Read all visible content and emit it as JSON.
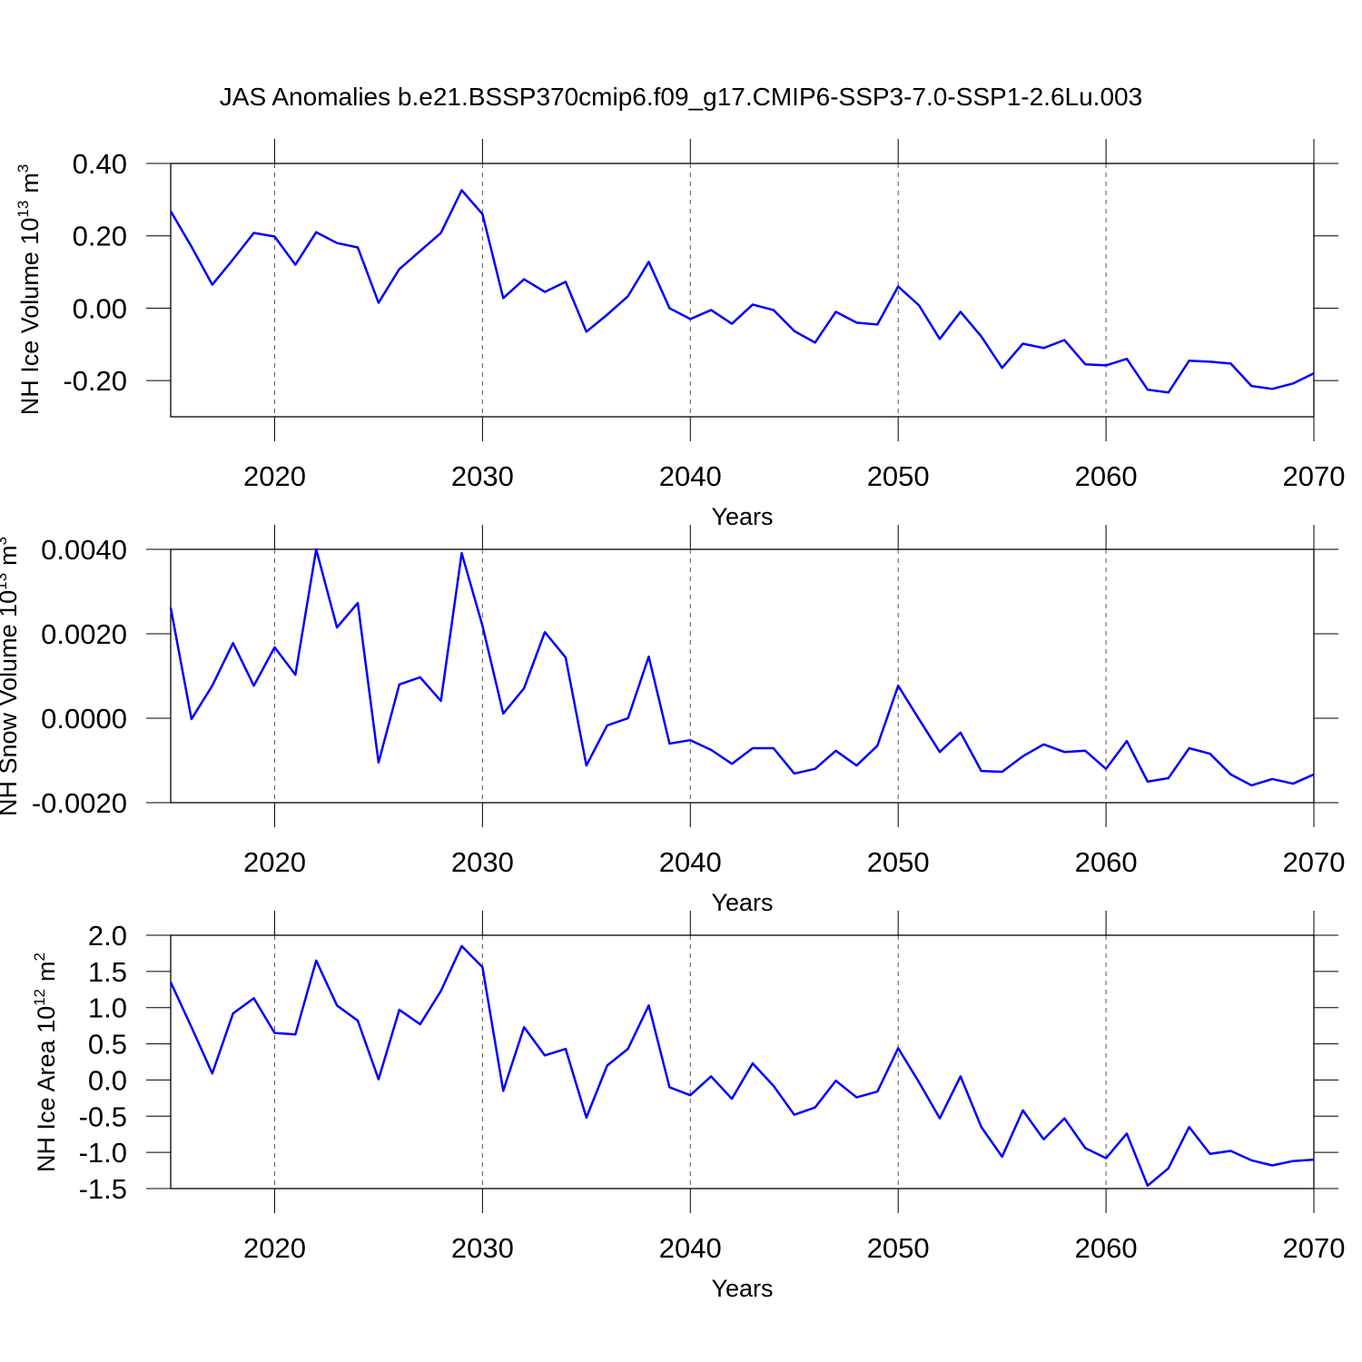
{
  "chart_data": [
    {
      "type": "line",
      "title": "JAS Anomalies b.e21.BSSP370cmip6.f09_g17.CMIP6-SSP3-7.0-SSP1-2.6Lu.003",
      "xlabel": "Years",
      "ylabel": {
        "text": "NH Ice Volume 10",
        "exp": "13",
        "unit": "m",
        "unit_exp": "3"
      },
      "x": [
        2015,
        2016,
        2017,
        2018,
        2019,
        2020,
        2021,
        2022,
        2023,
        2024,
        2025,
        2026,
        2027,
        2028,
        2029,
        2030,
        2031,
        2032,
        2033,
        2034,
        2035,
        2036,
        2037,
        2038,
        2039,
        2040,
        2041,
        2042,
        2043,
        2044,
        2045,
        2046,
        2047,
        2048,
        2049,
        2050,
        2051,
        2052,
        2053,
        2054,
        2055,
        2056,
        2057,
        2058,
        2059,
        2060,
        2061,
        2062,
        2063,
        2064,
        2065,
        2066,
        2067,
        2068,
        2069,
        2070
      ],
      "series": [
        {
          "color": "#0000ff",
          "values": [
            0.268,
            0.17,
            0.065,
            0.135,
            0.208,
            0.198,
            0.12,
            0.21,
            0.18,
            0.168,
            0.015,
            0.108,
            0.158,
            0.208,
            0.326,
            0.26,
            0.028,
            0.08,
            0.045,
            0.073,
            -0.065,
            -0.018,
            0.033,
            0.128,
            0.0,
            -0.03,
            -0.005,
            -0.043,
            0.01,
            -0.005,
            -0.063,
            -0.095,
            -0.01,
            -0.04,
            -0.045,
            0.06,
            0.008,
            -0.085,
            -0.01,
            -0.078,
            -0.165,
            -0.098,
            -0.11,
            -0.088,
            -0.155,
            -0.158,
            -0.14,
            -0.225,
            -0.233,
            -0.145,
            -0.148,
            -0.153,
            -0.215,
            -0.223,
            -0.208,
            -0.18
          ]
        }
      ],
      "xlim": [
        2015,
        2070
      ],
      "xticks": [
        2020,
        2030,
        2040,
        2050,
        2060,
        2070
      ],
      "ylim": [
        -0.3,
        0.4
      ],
      "yticks": [
        {
          "value": 0.4,
          "label": "0.40"
        },
        {
          "value": 0.2,
          "label": "0.20"
        },
        {
          "value": 0,
          "label": "0.00"
        },
        {
          "value": -0.2,
          "label": "-0.20"
        }
      ],
      "grid": true
    },
    {
      "type": "line",
      "xlabel": "Years",
      "ylabel": {
        "text": "NH Snow Volume 10",
        "exp": "13",
        "unit": "m",
        "unit_exp": "3"
      },
      "x": [
        2015,
        2016,
        2017,
        2018,
        2019,
        2020,
        2021,
        2022,
        2023,
        2024,
        2025,
        2026,
        2027,
        2028,
        2029,
        2030,
        2031,
        2032,
        2033,
        2034,
        2035,
        2036,
        2037,
        2038,
        2039,
        2040,
        2041,
        2042,
        2043,
        2044,
        2045,
        2046,
        2047,
        2048,
        2049,
        2050,
        2051,
        2052,
        2053,
        2054,
        2055,
        2056,
        2057,
        2058,
        2059,
        2060,
        2061,
        2062,
        2063,
        2064,
        2065,
        2066,
        2067,
        2068,
        2069,
        2070
      ],
      "series": [
        {
          "color": "#0000ff",
          "values": [
            0.00262,
            -2e-05,
            0.00077,
            0.00178,
            0.00077,
            0.00168,
            0.00103,
            0.004,
            0.00215,
            0.00273,
            -0.00105,
            0.0008,
            0.00097,
            0.00041,
            0.00391,
            0.00219,
            0.00011,
            0.00071,
            0.00204,
            0.00144,
            -0.00112,
            -0.00017,
            0.0,
            0.00146,
            -0.0006,
            -0.00052,
            -0.00075,
            -0.00108,
            -0.00071,
            -0.00071,
            -0.00131,
            -0.0012,
            -0.00077,
            -0.00112,
            -0.00065,
            0.00077,
            -2e-05,
            -0.0008,
            -0.00034,
            -0.00125,
            -0.00127,
            -0.0009,
            -0.00062,
            -0.0008,
            -0.00077,
            -0.0012,
            -0.00054,
            -0.0015,
            -0.00142,
            -0.00071,
            -0.00084,
            -0.00133,
            -0.00159,
            -0.00144,
            -0.00155,
            -0.00133
          ]
        }
      ],
      "xlim": [
        2015,
        2070
      ],
      "xticks": [
        2020,
        2030,
        2040,
        2050,
        2060,
        2070
      ],
      "ylim": [
        -0.002,
        0.004
      ],
      "yticks": [
        {
          "value": 0.004,
          "label": "0.0040"
        },
        {
          "value": 0.002,
          "label": "0.0020"
        },
        {
          "value": 0,
          "label": "0.0000"
        },
        {
          "value": -0.002,
          "label": "-0.0020"
        }
      ],
      "grid": true
    },
    {
      "type": "line",
      "xlabel": "Years",
      "ylabel": {
        "text": "NH Ice Area 10",
        "exp": "12",
        "unit": "m",
        "unit_exp": "2"
      },
      "x": [
        2015,
        2016,
        2017,
        2018,
        2019,
        2020,
        2021,
        2022,
        2023,
        2024,
        2025,
        2026,
        2027,
        2028,
        2029,
        2030,
        2031,
        2032,
        2033,
        2034,
        2035,
        2036,
        2037,
        2038,
        2039,
        2040,
        2041,
        2042,
        2043,
        2044,
        2045,
        2046,
        2047,
        2048,
        2049,
        2050,
        2051,
        2052,
        2053,
        2054,
        2055,
        2056,
        2057,
        2058,
        2059,
        2060,
        2061,
        2062,
        2063,
        2064,
        2065,
        2066,
        2067,
        2068,
        2069,
        2070
      ],
      "series": [
        {
          "color": "#0000ff",
          "values": [
            1.35,
            0.73,
            0.09,
            0.92,
            1.13,
            0.65,
            0.63,
            1.65,
            1.03,
            0.82,
            0.01,
            0.97,
            0.77,
            1.23,
            1.85,
            1.56,
            -0.15,
            0.73,
            0.34,
            0.43,
            -0.52,
            0.2,
            0.43,
            1.03,
            -0.1,
            -0.21,
            0.05,
            -0.26,
            0.23,
            -0.08,
            -0.48,
            -0.38,
            -0.01,
            -0.24,
            -0.16,
            0.44,
            -0.03,
            -0.53,
            0.05,
            -0.65,
            -1.06,
            -0.42,
            -0.82,
            -0.53,
            -0.94,
            -1.08,
            -0.74,
            -1.46,
            -1.22,
            -0.65,
            -1.02,
            -0.98,
            -1.11,
            -1.18,
            -1.12,
            -1.1
          ]
        }
      ],
      "xlim": [
        2015,
        2070
      ],
      "xticks": [
        2020,
        2030,
        2040,
        2050,
        2060,
        2070
      ],
      "ylim": [
        -1.5,
        2.0
      ],
      "yticks": [
        {
          "value": 2,
          "label": "2.0"
        },
        1.5,
        {
          "value": 1,
          "label": "1.0"
        },
        0.5,
        {
          "value": 0,
          "label": "0.0"
        },
        -0.5,
        {
          "value": -1,
          "label": "-1.0"
        },
        -1.5
      ],
      "grid": true
    }
  ]
}
